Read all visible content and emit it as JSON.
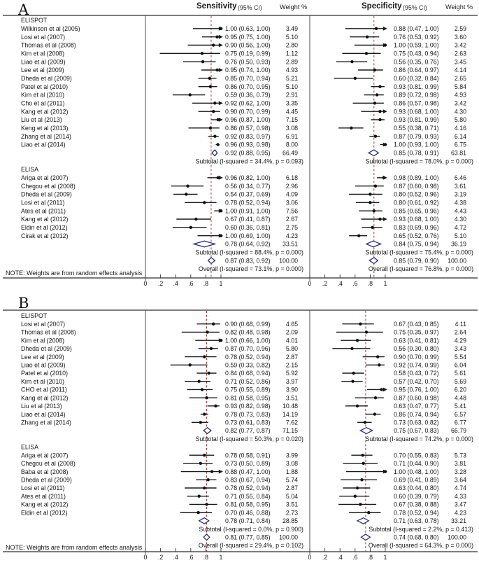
{
  "chart_data": {
    "type": "forest",
    "description": "Two-panel forest plot (A, B) of diagnostic Sensitivity and Specificity with 95% CI and weights, grouped by ELISPOT and ELISA assays",
    "axis": {
      "values": [
        0,
        0.2,
        0.4,
        0.6,
        0.8,
        1
      ],
      "labels": [
        "0",
        ".2",
        ".4",
        ".6",
        ".8",
        "1"
      ]
    },
    "panels": [
      {
        "label": "A",
        "note": "NOTE: Weights are from random effects analysis",
        "headers": {
          "sens": {
            "title": "Sensitivity",
            "ci": "(95% CI)",
            "weight": "Weight %"
          },
          "spec": {
            "title": "Specificity",
            "ci": "(95% CI)",
            "weight": "Weight %"
          }
        },
        "groups": [
          {
            "name": "ELISPOT",
            "studies": [
              {
                "label": "Wilkinson et al (2005)",
                "sens": [
                  1.0,
                  0.63,
                  1.0,
                  "3.49"
                ],
                "spec": [
                  0.88,
                  0.47,
                  1.0,
                  "2.59"
                ]
              },
              {
                "label": "Losi et al (2007)",
                "sens": [
                  0.95,
                  0.75,
                  1.0,
                  "5.10"
                ],
                "spec": [
                  0.76,
                  0.53,
                  0.92,
                  "3.60"
                ]
              },
              {
                "label": "Thomas et al (2008)",
                "sens": [
                  0.9,
                  0.56,
                  1.0,
                  "2.80"
                ],
                "spec": [
                  1.0,
                  0.59,
                  1.0,
                  "3.42"
                ]
              },
              {
                "label": "Kim et al (2008)",
                "sens": [
                  0.75,
                  0.19,
                  0.99,
                  "1.12"
                ],
                "spec": [
                  0.75,
                  0.43,
                  0.94,
                  "2.63"
                ]
              },
              {
                "label": "Liao et al (2009)",
                "sens": [
                  0.76,
                  0.5,
                  0.93,
                  "2.89"
                ],
                "spec": [
                  0.56,
                  0.35,
                  0.76,
                  "3.45"
                ]
              },
              {
                "label": "Lee et al (2009)",
                "sens": [
                  0.95,
                  0.74,
                  1.0,
                  "4.93"
                ],
                "spec": [
                  0.86,
                  0.64,
                  0.97,
                  "4.14"
                ]
              },
              {
                "label": "Dheda et al (2009)",
                "sens": [
                  0.85,
                  0.7,
                  0.94,
                  "5.21"
                ],
                "spec": [
                  0.6,
                  0.32,
                  0.84,
                  "2.65"
                ]
              },
              {
                "label": "Patel et al (2010)",
                "sens": [
                  0.86,
                  0.7,
                  0.95,
                  "5.10"
                ],
                "spec": [
                  0.93,
                  0.81,
                  0.99,
                  "5.84"
                ]
              },
              {
                "label": "Kim et al (2010)",
                "sens": [
                  0.59,
                  0.36,
                  0.79,
                  "2.91"
                ],
                "spec": [
                  0.89,
                  0.72,
                  0.98,
                  "4.93"
                ]
              },
              {
                "label": "Cho et al (2011)",
                "sens": [
                  0.92,
                  0.62,
                  1.0,
                  "3.35"
                ],
                "spec": [
                  0.86,
                  0.57,
                  0.98,
                  "3.42"
                ]
              },
              {
                "label": "Kang et al (2012)",
                "sens": [
                  0.9,
                  0.7,
                  0.99,
                  "4.45"
                ],
                "spec": [
                  0.93,
                  0.68,
                  1.0,
                  "4.30"
                ]
              },
              {
                "label": "Liu et al (2013)",
                "sens": [
                  0.96,
                  0.87,
                  1.0,
                  "7.15"
                ],
                "spec": [
                  0.93,
                  0.81,
                  0.99,
                  "5.80"
                ]
              },
              {
                "label": "Keng et al (2013)",
                "sens": [
                  0.86,
                  0.57,
                  0.98,
                  "3.08"
                ],
                "spec": [
                  0.55,
                  0.38,
                  0.71,
                  "4.16"
                ]
              },
              {
                "label": "Zhang et al (2014)",
                "sens": [
                  0.92,
                  0.83,
                  0.97,
                  "6.91"
                ],
                "spec": [
                  0.87,
                  0.79,
                  0.93,
                  "6.14"
                ]
              },
              {
                "label": "Liao et al (2014)",
                "sens": [
                  0.96,
                  0.93,
                  0.98,
                  "8.00"
                ],
                "spec": [
                  1.0,
                  0.93,
                  1.0,
                  "6.75"
                ]
              }
            ],
            "subtotal": {
              "sens": [
                0.92,
                0.88,
                0.95,
                "66.49"
              ],
              "spec": [
                0.85,
                0.78,
                0.91,
                "63.81"
              ],
              "sens_het": "Subtotal (I-squared = 34.4%, p = 0.093)",
              "spec_het": "Subtotal (I-squared = 78.0%, p = 0.000)"
            }
          },
          {
            "name": "ELISA",
            "studies": [
              {
                "label": "Ariga et al (2007)",
                "sens": [
                  0.96,
                  0.82,
                  1.0,
                  "6.18"
                ],
                "spec": [
                  0.98,
                  0.89,
                  1.0,
                  "6.46"
                ]
              },
              {
                "label": "Chegou et al (2008)",
                "sens": [
                  0.56,
                  0.34,
                  0.77,
                  "2.96"
                ],
                "spec": [
                  0.87,
                  0.6,
                  0.98,
                  "3.61"
                ]
              },
              {
                "label": "Dheda et al (2009)",
                "sens": [
                  0.54,
                  0.37,
                  0.69,
                  "4.09"
                ],
                "spec": [
                  0.8,
                  0.52,
                  0.96,
                  "3.19"
                ]
              },
              {
                "label": "Losi et al (2011)",
                "sens": [
                  0.78,
                  0.52,
                  0.94,
                  "3.06"
                ],
                "spec": [
                  0.8,
                  0.61,
                  0.92,
                  "4.38"
                ]
              },
              {
                "label": "Ates et al (2011)",
                "sens": [
                  1.0,
                  0.91,
                  1.0,
                  "7.56"
                ],
                "spec": [
                  0.85,
                  0.65,
                  0.96,
                  "4.43"
                ]
              },
              {
                "label": "Kang et al (2012)",
                "sens": [
                  0.67,
                  0.41,
                  0.87,
                  "2.67"
                ],
                "spec": [
                  0.93,
                  0.68,
                  1.0,
                  "4.30"
                ]
              },
              {
                "label": "Eldin et al (2012)",
                "sens": [
                  0.6,
                  0.36,
                  0.81,
                  "2.75"
                ],
                "spec": [
                  0.83,
                  0.69,
                  0.96,
                  "4.72"
                ]
              },
              {
                "label": "Cirak et al (2012)",
                "sens": [
                  1.0,
                  0.69,
                  1.0,
                  "4.23"
                ],
                "spec": [
                  0.65,
                  0.52,
                  0.76,
                  "5.10"
                ]
              }
            ],
            "subtotal": {
              "sens": [
                0.78,
                0.64,
                0.92,
                "33.51"
              ],
              "spec": [
                0.84,
                0.75,
                0.94,
                "36.19"
              ],
              "sens_het": "Subtotal (I-squared = 88.4%, p = 0.000)",
              "spec_het": "Subtotal (I-squared = 75.4%, p = 0.000)"
            }
          }
        ],
        "overall": {
          "sens": [
            0.87,
            0.83,
            0.92,
            "100.00"
          ],
          "spec": [
            0.85,
            0.79,
            0.9,
            "100.00"
          ],
          "sens_het": "Overall (I-squared = 73.1%, p = 0.000)",
          "spec_het": "Overall (I-squared = 76.8%, p = 0.000)"
        }
      },
      {
        "label": "B",
        "note": "NOTE: Weights are from random effects analysis",
        "groups": [
          {
            "name": "ELISPOT",
            "studies": [
              {
                "label": "Losi et al (2007)",
                "sens": [
                  0.9,
                  0.68,
                  0.99,
                  "4.65"
                ],
                "spec": [
                  0.67,
                  0.43,
                  0.85,
                  "4.11"
                ]
              },
              {
                "label": "Thomas et al (2008)",
                "sens": [
                  0.82,
                  0.48,
                  0.98,
                  "2.09"
                ],
                "spec": [
                  0.75,
                  0.35,
                  0.97,
                  "2.64"
                ]
              },
              {
                "label": "Kim et al (2008)",
                "sens": [
                  1.0,
                  0.66,
                  1.0,
                  "4.01"
                ],
                "spec": [
                  0.63,
                  0.41,
                  0.81,
                  "4.29"
                ]
              },
              {
                "label": "Dheda et al (2009)",
                "sens": [
                  0.87,
                  0.7,
                  0.96,
                  "5.80"
                ],
                "spec": [
                  0.56,
                  0.3,
                  0.8,
                  "3.43"
                ]
              },
              {
                "label": "Lee et al (2009)",
                "sens": [
                  0.78,
                  0.52,
                  0.94,
                  "2.87"
                ],
                "spec": [
                  0.9,
                  0.7,
                  0.99,
                  "5.54"
                ]
              },
              {
                "label": "Liao et al (2009)",
                "sens": [
                  0.59,
                  0.33,
                  0.82,
                  "2.15"
                ],
                "spec": [
                  0.92,
                  0.74,
                  0.99,
                  "6.04"
                ]
              },
              {
                "label": "Patel et al (2010)",
                "sens": [
                  0.84,
                  0.68,
                  0.94,
                  "5.92"
                ],
                "spec": [
                  0.58,
                  0.43,
                  0.72,
                  "5.61"
                ]
              },
              {
                "label": "Kim et al (2010)",
                "sens": [
                  0.71,
                  0.52,
                  0.86,
                  "3.97"
                ],
                "spec": [
                  0.57,
                  0.42,
                  0.7,
                  "5.69"
                ]
              },
              {
                "label": "CHO et al (2011)",
                "sens": [
                  0.75,
                  0.55,
                  0.89,
                  "3.90"
                ],
                "spec": [
                  0.95,
                  0.76,
                  1.0,
                  "6.20"
                ]
              },
              {
                "label": "Kang et al (2012)",
                "sens": [
                  0.81,
                  0.58,
                  0.95,
                  "3.51"
                ],
                "spec": [
                  0.87,
                  0.6,
                  0.98,
                  "4.48"
                ]
              },
              {
                "label": "Liu et al (2013)",
                "sens": [
                  0.93,
                  0.82,
                  0.98,
                  "10.48"
                ],
                "spec": [
                  0.63,
                  0.47,
                  0.77,
                  "5.41"
                ]
              },
              {
                "label": "Liao et al (2014)",
                "sens": [
                  0.78,
                  0.73,
                  0.83,
                  "14.19"
                ],
                "spec": [
                  0.86,
                  0.74,
                  0.94,
                  "6.57"
                ]
              },
              {
                "label": "Zhang et al (2014)",
                "sens": [
                  0.73,
                  0.61,
                  0.83,
                  "7.62"
                ],
                "spec": [
                  0.73,
                  0.63,
                  0.82,
                  "6.77"
                ]
              }
            ],
            "subtotal": {
              "sens": [
                0.82,
                0.77,
                0.87,
                "71.15"
              ],
              "spec": [
                0.75,
                0.67,
                0.83,
                "66.79"
              ],
              "sens_het": "Subtotal (I-squared = 50.3%, p = 0.020)",
              "spec_het": "Subtotal (I-squared = 74.2%, p = 0.000)"
            }
          },
          {
            "name": "ELISA",
            "studies": [
              {
                "label": "Ariga et al (2007)",
                "sens": [
                  0.78,
                  0.58,
                  0.91,
                  "3.99"
                ],
                "spec": [
                  0.7,
                  0.55,
                  0.83,
                  "5.73"
                ]
              },
              {
                "label": "Chegou et al (2008)",
                "sens": [
                  0.73,
                  0.5,
                  0.89,
                  "3.08"
                ],
                "spec": [
                  0.71,
                  0.44,
                  0.9,
                  "3.81"
                ]
              },
              {
                "label": "Baba et al (2008)",
                "sens": [
                  0.88,
                  0.47,
                  1.0,
                  "1.88"
                ],
                "spec": [
                  1.0,
                  0.48,
                  1.0,
                  "3.28"
                ]
              },
              {
                "label": "Dheda et al (2009)",
                "sens": [
                  0.83,
                  0.67,
                  0.94,
                  "5.74"
                ],
                "spec": [
                  0.69,
                  0.41,
                  0.89,
                  "3.64"
                ]
              },
              {
                "label": "Losi et al (2011)",
                "sens": [
                  0.78,
                  0.52,
                  0.94,
                  "2.87"
                ],
                "spec": [
                  0.63,
                  0.44,
                  0.8,
                  "4.74"
                ]
              },
              {
                "label": "Ates et al (2011)",
                "sens": [
                  0.71,
                  0.55,
                  0.84,
                  "5.04"
                ],
                "spec": [
                  0.6,
                  0.39,
                  0.79,
                  "4.33"
                ]
              },
              {
                "label": "Kang et al (2012)",
                "sens": [
                  0.81,
                  0.58,
                  0.95,
                  "3.51"
                ],
                "spec": [
                  0.67,
                  0.38,
                  0.88,
                  "3.47"
                ]
              },
              {
                "label": "Eldin et al (2012)",
                "sens": [
                  0.7,
                  0.46,
                  0.88,
                  "2.73"
                ],
                "spec": [
                  0.78,
                  0.52,
                  0.94,
                  "4.23"
                ]
              }
            ],
            "subtotal": {
              "sens": [
                0.78,
                0.71,
                0.84,
                "28.85"
              ],
              "spec": [
                0.71,
                0.63,
                0.78,
                "33.21"
              ],
              "sens_het": "Subtotal (I-squared = 0.0%, p = 0.900)",
              "spec_het": "Subtotal (I-squared = 2.2%, p = 0.413)"
            }
          }
        ],
        "overall": {
          "sens": [
            0.81,
            0.77,
            0.85,
            "100.00"
          ],
          "spec": [
            0.74,
            0.68,
            0.8,
            "100.00"
          ],
          "sens_het": "Overall (I-squared = 29.4%, p = 0.102)",
          "spec_het": "Overall (I-squared = 64.3%, p = 0.000)"
        }
      }
    ],
    "colors": {
      "line": "#1a1a1a",
      "marker": "#111111",
      "diamond_stroke": "#2a3174",
      "dashed_pooled_line": "#9e3a3a",
      "axis": "#2f2f2f",
      "text": "#141414"
    }
  }
}
